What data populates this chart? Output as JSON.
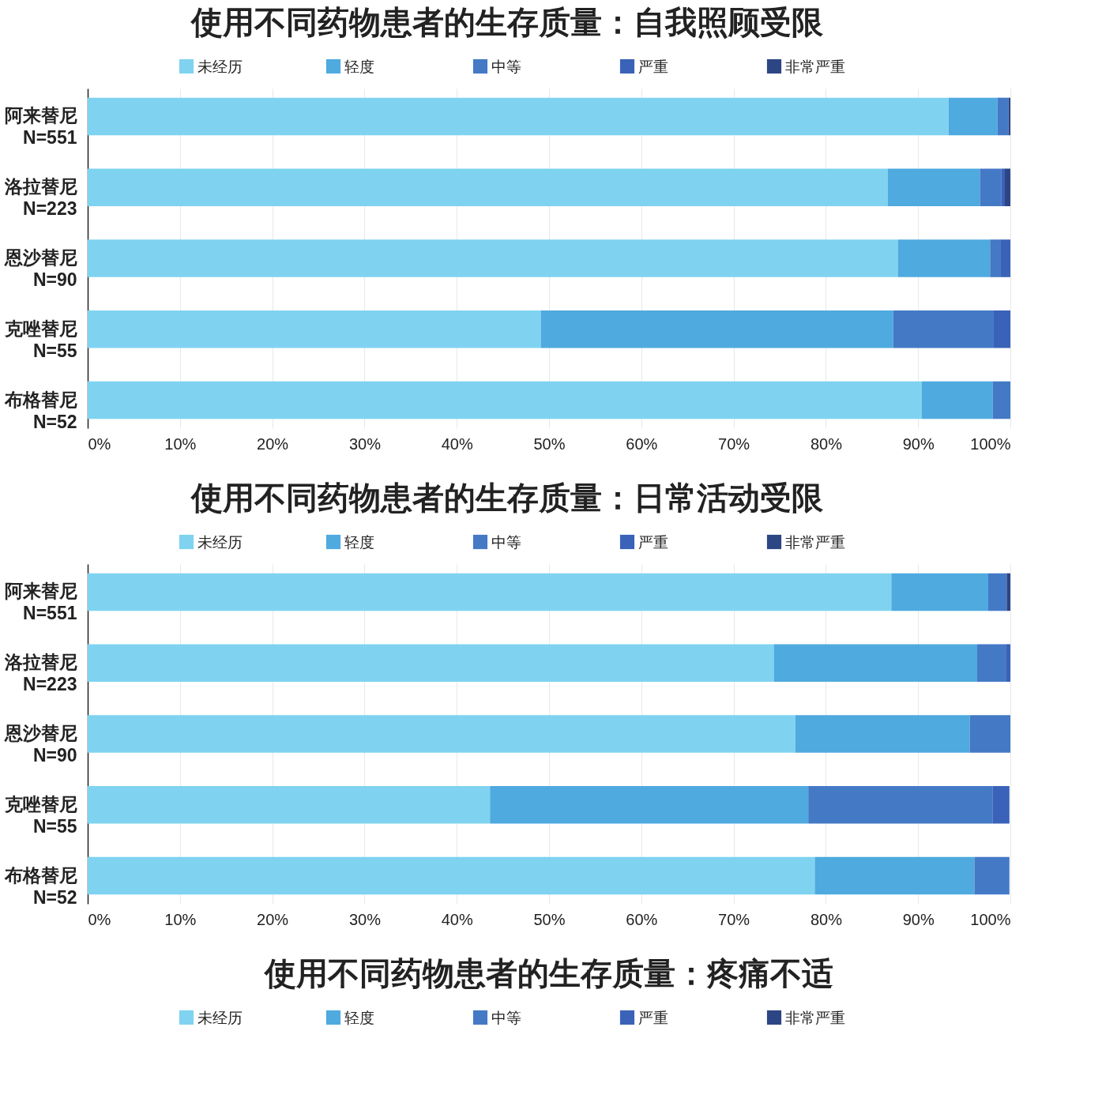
{
  "chart_data": [
    {
      "type": "bar",
      "orientation": "horizontal",
      "stacked": true,
      "title": "使用不同药物患者的生存质量：自我照顾受限",
      "categories": [
        "阿来替尼\nN=551",
        "洛拉替尼\nN=223",
        "恩沙替尼\nN=90",
        "克唑替尼\nN=55",
        "布格替尼\nN=52"
      ],
      "series": [
        {
          "name": "未经历",
          "color": "#7fd3f0",
          "values": [
            93.3,
            86.7,
            87.8,
            49.1,
            90.4
          ]
        },
        {
          "name": "轻度",
          "color": "#4eaadf",
          "values": [
            5.3,
            10.0,
            10.0,
            38.2,
            7.7
          ]
        },
        {
          "name": "中等",
          "color": "#4479c6",
          "values": [
            1.2,
            2.3,
            1.1,
            10.9,
            1.9
          ]
        },
        {
          "name": "严重",
          "color": "#3a62b8",
          "values": [
            0,
            0.4,
            1.1,
            1.8,
            0
          ]
        },
        {
          "name": "非常严重",
          "color": "#2c4585",
          "values": [
            0.2,
            0.6,
            0,
            0,
            0
          ]
        }
      ],
      "xlim": [
        0,
        100
      ],
      "xticks": [
        {
          "value": 0,
          "label": "0%"
        },
        {
          "value": 10,
          "label": "10%"
        },
        {
          "value": 20,
          "label": "20%"
        },
        {
          "value": 30,
          "label": "30%"
        },
        {
          "value": 40,
          "label": "40%"
        },
        {
          "value": 50,
          "label": "50%"
        },
        {
          "value": 60,
          "label": "60%"
        },
        {
          "value": 70,
          "label": "70%"
        },
        {
          "value": 80,
          "label": "80%"
        },
        {
          "value": 90,
          "label": "90%"
        },
        {
          "value": 100,
          "label": "100%"
        }
      ],
      "grid": "x",
      "legend": "top"
    },
    {
      "type": "bar",
      "orientation": "horizontal",
      "stacked": true,
      "title": "使用不同药物患者的生存质量：日常活动受限",
      "categories": [
        "阿来替尼\nN=551",
        "洛拉替尼\nN=223",
        "恩沙替尼\nN=90",
        "克唑替尼\nN=55",
        "布格替尼\nN=52"
      ],
      "series": [
        {
          "name": "未经历",
          "color": "#7fd3f0",
          "values": [
            87.1,
            74.4,
            76.7,
            43.6,
            78.8
          ]
        },
        {
          "name": "轻度",
          "color": "#4eaadf",
          "values": [
            10.5,
            22.0,
            18.9,
            34.5,
            17.3
          ]
        },
        {
          "name": "中等",
          "color": "#4479c6",
          "values": [
            2.0,
            3.1,
            4.4,
            20.0,
            3.8
          ]
        },
        {
          "name": "严重",
          "color": "#3a62b8",
          "values": [
            0,
            0.5,
            0,
            1.8,
            0
          ]
        },
        {
          "name": "非常严重",
          "color": "#2c4585",
          "values": [
            0.4,
            0,
            0,
            0,
            0
          ]
        }
      ],
      "xlim": [
        0,
        100
      ],
      "xticks": [
        {
          "value": 0,
          "label": "0%"
        },
        {
          "value": 10,
          "label": "10%"
        },
        {
          "value": 20,
          "label": "20%"
        },
        {
          "value": 30,
          "label": "30%"
        },
        {
          "value": 40,
          "label": "40%"
        },
        {
          "value": 50,
          "label": "50%"
        },
        {
          "value": 60,
          "label": "60%"
        },
        {
          "value": 70,
          "label": "70%"
        },
        {
          "value": 80,
          "label": "80%"
        },
        {
          "value": 90,
          "label": "90%"
        },
        {
          "value": 100,
          "label": "100%"
        }
      ],
      "grid": "x",
      "legend": "top"
    },
    {
      "type": "other",
      "title": "使用不同药物患者的生存质量：疼痛不适",
      "series": [
        {
          "name": "未经历",
          "color": "#7fd3f0"
        },
        {
          "name": "轻度",
          "color": "#4eaadf"
        },
        {
          "name": "中等",
          "color": "#4479c6"
        },
        {
          "name": "严重",
          "color": "#3a62b8"
        },
        {
          "name": "非常严重",
          "color": "#2c4585"
        }
      ],
      "legend": "top"
    }
  ]
}
